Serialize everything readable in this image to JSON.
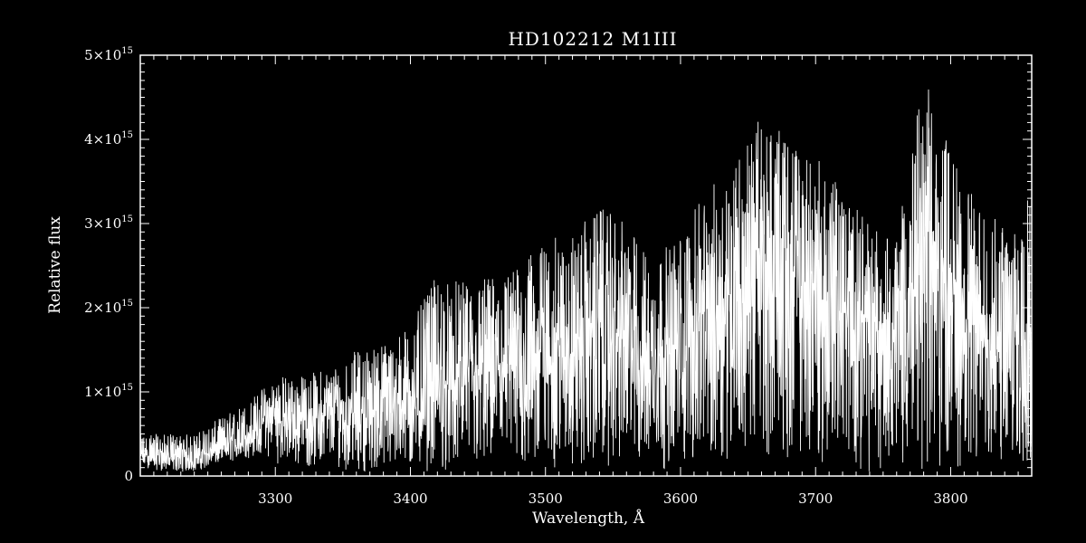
{
  "chart_data": {
    "type": "line",
    "title": "HD102212   M1III",
    "xlabel": "Wavelength, Å",
    "ylabel": "Relative flux",
    "xlim": [
      3200,
      3860
    ],
    "ylim": [
      0,
      5000000000000000.0
    ],
    "x_ticks": [
      {
        "value": 3300,
        "label": "3300"
      },
      {
        "value": 3400,
        "label": "3400"
      },
      {
        "value": 3500,
        "label": "3500"
      },
      {
        "value": 3600,
        "label": "3600"
      },
      {
        "value": 3700,
        "label": "3700"
      },
      {
        "value": 3800,
        "label": "3800"
      }
    ],
    "y_ticks": [
      {
        "value": 0,
        "label": "0"
      },
      {
        "value": 1000000000000000.0,
        "label": "1×10",
        "exp": "15"
      },
      {
        "value": 2000000000000000.0,
        "label": "2×10",
        "exp": "15"
      },
      {
        "value": 3000000000000000.0,
        "label": "3×10",
        "exp": "15"
      },
      {
        "value": 4000000000000000.0,
        "label": "4×10",
        "exp": "15"
      },
      {
        "value": 5000000000000000.0,
        "label": "5×10",
        "exp": "15"
      }
    ],
    "grid": false,
    "legend": "none",
    "line_color": "#ffffff",
    "background_color": "#000000",
    "series": [
      {
        "x": [
          3200,
          3220,
          3240,
          3260,
          3280,
          3290,
          3300,
          3320,
          3340,
          3360,
          3380,
          3400,
          3420,
          3440,
          3460,
          3480,
          3500,
          3520,
          3540,
          3560,
          3580,
          3600,
          3620,
          3640,
          3660,
          3680,
          3700,
          3720,
          3740,
          3760,
          3780,
          3800,
          3820,
          3840,
          3860
        ],
        "y": [
          250000000000000.0,
          220000000000000.0,
          200000000000000.0,
          320000000000000.0,
          450000000000000.0,
          600000000000000.0,
          700000000000000.0,
          650000000000000.0,
          720000000000000.0,
          750000000000000.0,
          800000000000000.0,
          900000000000000.0,
          1000000000000000.0,
          1100000000000000.0,
          1200000000000000.0,
          1300000000000000.0,
          1500000000000000.0,
          1450000000000000.0,
          1700000000000000.0,
          1600000000000000.0,
          1350000000000000.0,
          1500000000000000.0,
          1900000000000000.0,
          2200000000000000.0,
          2500000000000000.0,
          2400000000000000.0,
          2100000000000000.0,
          1900000000000000.0,
          1800000000000000.0,
          1800000000000000.0,
          2600000000000000.0,
          2200000000000000.0,
          1700000000000000.0,
          1400000000000000.0,
          1800000000000000.0
        ],
        "y_peak": [
          500000000000000.0,
          500000000000000.0,
          500000000000000.0,
          700000000000000.0,
          900000000000000.0,
          1050000000000000.0,
          1200000000000000.0,
          1200000000000000.0,
          1300000000000000.0,
          1500000000000000.0,
          1600000000000000.0,
          1800000000000000.0,
          2400000000000000.0,
          2300000000000000.0,
          2400000000000000.0,
          2500000000000000.0,
          2800000000000000.0,
          2900000000000000.0,
          3200000000000000.0,
          3000000000000000.0,
          2600000000000000.0,
          2900000000000000.0,
          3400000000000000.0,
          3800000000000000.0,
          4300000000000000.0,
          4000000000000000.0,
          3800000000000000.0,
          3400000000000000.0,
          3000000000000000.0,
          2800000000000000.0,
          4800000000000000.0,
          3900000000000000.0,
          3200000000000000.0,
          3000000000000000.0,
          3600000000000000.0
        ],
        "y_trough": [
          100000000000000.0,
          50000000000000.0,
          50000000000000.0,
          150000000000000.0,
          200000000000000.0,
          250000000000000.0,
          150000000000000.0,
          100000000000000.0,
          100000000000000.0,
          50000000000000.0,
          50000000000000.0,
          50000000000000.0,
          50000000000000.0,
          50000000000000.0,
          50000000000000.0,
          50000000000000.0,
          50000000000000.0,
          50000000000000.0,
          100000000000000.0,
          100000000000000.0,
          50000000000000.0,
          100000000000000.0,
          150000000000000.0,
          200000000000000.0,
          250000000000000.0,
          200000000000000.0,
          150000000000000.0,
          100000000000000.0,
          50000000000000.0,
          100000000000000.0,
          50000000000000.0,
          50000000000000.0,
          100000000000000.0,
          50000000000000.0,
          100000000000000.0
        ]
      }
    ]
  }
}
